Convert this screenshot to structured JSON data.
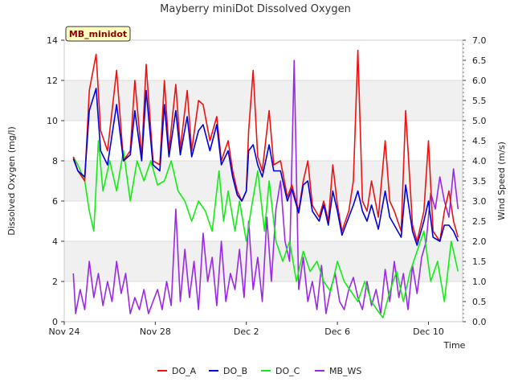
{
  "chart_data": {
    "type": "line",
    "title": "Mayberry miniDot Dissolved Oxygen",
    "badge": "MB_minidot",
    "xlabel": "Time",
    "ylabel": "Dissolved Oxygen (mg/l)",
    "y2label": "Wind Speed (m/s)",
    "xlim": [
      0,
      17.5
    ],
    "ylim": [
      0,
      14
    ],
    "y2lim": [
      0,
      7
    ],
    "x_ticks": [
      {
        "x": 0,
        "label": "Nov 24"
      },
      {
        "x": 4,
        "label": "Nov 28"
      },
      {
        "x": 8,
        "label": "Dec 2"
      },
      {
        "x": 12,
        "label": "Dec 6"
      },
      {
        "x": 16,
        "label": "Dec 10"
      }
    ],
    "y_ticks": [
      0,
      2,
      4,
      6,
      8,
      10,
      12,
      14
    ],
    "y2_ticks": [
      "0.0",
      "0.5",
      "1.0",
      "1.5",
      "2.0",
      "2.5",
      "3.0",
      "3.5",
      "4.0",
      "4.5",
      "5.0",
      "5.5",
      "6.0",
      "6.5",
      "7.0"
    ],
    "legend_position": "bottom",
    "grid": "horizontal bands",
    "series": [
      {
        "name": "DO_A",
        "color": "#ee1111",
        "axis": "left",
        "x": [
          0.4,
          0.6,
          0.9,
          1.1,
          1.4,
          1.6,
          1.9,
          2.3,
          2.6,
          2.9,
          3.1,
          3.4,
          3.6,
          3.9,
          4.2,
          4.4,
          4.6,
          4.9,
          5.1,
          5.4,
          5.6,
          5.9,
          6.1,
          6.4,
          6.7,
          6.9,
          7.2,
          7.4,
          7.6,
          7.8,
          8.0,
          8.1,
          8.3,
          8.5,
          8.7,
          9.0,
          9.2,
          9.5,
          9.8,
          10.0,
          10.3,
          10.5,
          10.7,
          10.9,
          11.2,
          11.4,
          11.6,
          11.8,
          12.0,
          12.2,
          12.5,
          12.7,
          12.9,
          13.1,
          13.3,
          13.5,
          13.8,
          14.1,
          14.3,
          14.5,
          14.8,
          15.0,
          15.3,
          15.5,
          15.8,
          16.0,
          16.2,
          16.5,
          16.7,
          16.9,
          17.1,
          17.3
        ],
        "y": [
          8.2,
          7.5,
          7.0,
          11.5,
          13.3,
          9.5,
          8.5,
          12.5,
          8.0,
          8.5,
          12.0,
          8.2,
          12.8,
          8.0,
          7.8,
          12.0,
          8.5,
          11.8,
          8.6,
          11.5,
          8.5,
          11.0,
          10.8,
          9.0,
          10.2,
          8.0,
          9.0,
          7.5,
          6.5,
          6.0,
          6.5,
          9.5,
          12.5,
          8.2,
          7.5,
          10.5,
          7.8,
          8.0,
          6.2,
          6.8,
          5.5,
          7.0,
          8.0,
          5.8,
          5.2,
          6.0,
          5.0,
          7.8,
          5.8,
          4.5,
          5.5,
          7.0,
          13.5,
          6.0,
          5.5,
          7.0,
          5.2,
          9.0,
          6.0,
          5.5,
          4.5,
          10.5,
          4.8,
          4.0,
          5.5,
          9.0,
          4.5,
          4.0,
          5.5,
          6.5,
          5.0,
          4.2
        ]
      },
      {
        "name": "DO_B",
        "color": "#0000dd",
        "axis": "left",
        "x": [
          0.4,
          0.6,
          0.9,
          1.1,
          1.4,
          1.6,
          1.9,
          2.3,
          2.6,
          2.9,
          3.1,
          3.4,
          3.6,
          3.9,
          4.2,
          4.4,
          4.6,
          4.9,
          5.1,
          5.4,
          5.6,
          5.9,
          6.1,
          6.4,
          6.7,
          6.9,
          7.2,
          7.4,
          7.6,
          7.8,
          8.0,
          8.1,
          8.3,
          8.5,
          8.7,
          9.0,
          9.2,
          9.5,
          9.8,
          10.0,
          10.3,
          10.5,
          10.7,
          10.9,
          11.2,
          11.4,
          11.6,
          11.8,
          12.0,
          12.2,
          12.5,
          12.7,
          12.9,
          13.1,
          13.3,
          13.5,
          13.8,
          14.1,
          14.3,
          14.5,
          14.8,
          15.0,
          15.3,
          15.5,
          15.8,
          16.0,
          16.2,
          16.5,
          16.7,
          16.9,
          17.1,
          17.3
        ],
        "y": [
          8.1,
          7.5,
          7.2,
          10.5,
          11.6,
          8.5,
          7.8,
          10.8,
          8.0,
          8.3,
          10.5,
          8.0,
          11.5,
          7.8,
          7.5,
          10.8,
          8.2,
          10.5,
          8.3,
          10.2,
          8.2,
          9.5,
          9.8,
          8.5,
          9.8,
          7.8,
          8.5,
          7.2,
          6.3,
          6.0,
          6.5,
          8.5,
          8.8,
          7.8,
          7.2,
          8.8,
          7.5,
          7.5,
          6.0,
          6.6,
          5.4,
          6.8,
          7.0,
          5.5,
          5.0,
          5.8,
          4.8,
          6.5,
          5.5,
          4.3,
          5.2,
          5.8,
          6.5,
          5.5,
          5.0,
          5.8,
          4.6,
          6.5,
          5.2,
          4.8,
          4.2,
          6.8,
          4.5,
          3.8,
          5.0,
          6.0,
          4.2,
          4.0,
          4.8,
          4.8,
          4.5,
          4.0
        ]
      },
      {
        "name": "DO_C",
        "color": "#11ee11",
        "axis": "left",
        "x": [
          0.4,
          0.6,
          0.9,
          1.1,
          1.3,
          1.5,
          1.7,
          2.0,
          2.3,
          2.6,
          2.9,
          3.2,
          3.5,
          3.8,
          4.1,
          4.4,
          4.7,
          5.0,
          5.3,
          5.6,
          5.9,
          6.2,
          6.5,
          6.8,
          7.0,
          7.2,
          7.5,
          7.7,
          8.0,
          8.2,
          8.5,
          8.8,
          9.0,
          9.3,
          9.6,
          9.9,
          10.2,
          10.5,
          10.8,
          11.1,
          11.4,
          11.7,
          12.0,
          12.3,
          12.6,
          12.9,
          13.2,
          13.5,
          13.8,
          14.0,
          14.3,
          14.6,
          14.9,
          15.2,
          15.5,
          15.8,
          16.1,
          16.4,
          16.7,
          17.0,
          17.3
        ],
        "y": [
          8.2,
          7.8,
          7.0,
          5.5,
          4.5,
          9.0,
          6.5,
          8.0,
          6.5,
          8.5,
          6.0,
          8.0,
          7.0,
          8.0,
          6.8,
          7.0,
          8.0,
          6.5,
          6.0,
          5.0,
          6.0,
          5.5,
          4.5,
          7.5,
          5.0,
          6.5,
          4.5,
          6.0,
          4.0,
          5.5,
          7.5,
          4.5,
          7.0,
          4.0,
          3.0,
          4.0,
          2.0,
          3.5,
          2.5,
          3.0,
          2.0,
          1.5,
          3.0,
          2.0,
          1.5,
          1.0,
          2.0,
          1.0,
          0.5,
          0.2,
          1.5,
          2.5,
          1.0,
          2.5,
          3.5,
          4.5,
          2.0,
          3.0,
          1.0,
          4.0,
          2.5
        ]
      },
      {
        "name": "MB_WS",
        "color": "#9a28e6",
        "axis": "right",
        "x": [
          0.4,
          0.5,
          0.7,
          0.9,
          1.1,
          1.3,
          1.5,
          1.7,
          1.9,
          2.1,
          2.3,
          2.5,
          2.7,
          2.9,
          3.1,
          3.3,
          3.5,
          3.7,
          3.9,
          4.1,
          4.3,
          4.5,
          4.7,
          4.9,
          5.1,
          5.3,
          5.5,
          5.7,
          5.9,
          6.1,
          6.3,
          6.5,
          6.7,
          6.9,
          7.1,
          7.3,
          7.5,
          7.7,
          7.9,
          8.1,
          8.3,
          8.5,
          8.7,
          8.9,
          9.1,
          9.3,
          9.5,
          9.7,
          9.9,
          10.1,
          10.3,
          10.5,
          10.7,
          10.9,
          11.1,
          11.3,
          11.5,
          11.7,
          11.9,
          12.1,
          12.3,
          12.5,
          12.7,
          12.9,
          13.1,
          13.3,
          13.5,
          13.7,
          13.9,
          14.1,
          14.3,
          14.5,
          14.7,
          14.9,
          15.1,
          15.3,
          15.5,
          15.7,
          15.9,
          16.1,
          16.3,
          16.5,
          16.7,
          16.9,
          17.1,
          17.3
        ],
        "y": [
          1.2,
          0.2,
          0.8,
          0.3,
          1.5,
          0.6,
          1.2,
          0.4,
          1.0,
          0.5,
          1.5,
          0.7,
          1.2,
          0.2,
          0.6,
          0.3,
          0.8,
          0.2,
          0.5,
          0.8,
          0.3,
          1.0,
          0.4,
          2.8,
          0.5,
          1.8,
          0.6,
          1.5,
          0.3,
          2.2,
          1.0,
          1.6,
          0.4,
          2.0,
          0.5,
          1.2,
          0.8,
          1.8,
          0.6,
          2.5,
          0.8,
          1.6,
          0.5,
          2.6,
          1.0,
          2.8,
          3.5,
          2.0,
          1.5,
          6.5,
          0.8,
          1.6,
          0.5,
          1.0,
          0.3,
          1.4,
          0.2,
          0.8,
          1.2,
          0.5,
          0.3,
          0.8,
          1.1,
          0.6,
          0.3,
          1.0,
          0.4,
          0.8,
          0.2,
          1.3,
          0.5,
          1.5,
          0.6,
          1.2,
          0.3,
          1.4,
          0.7,
          1.6,
          2.0,
          3.2,
          2.8,
          3.6,
          3.0,
          2.6,
          3.8,
          2.8
        ]
      }
    ]
  }
}
